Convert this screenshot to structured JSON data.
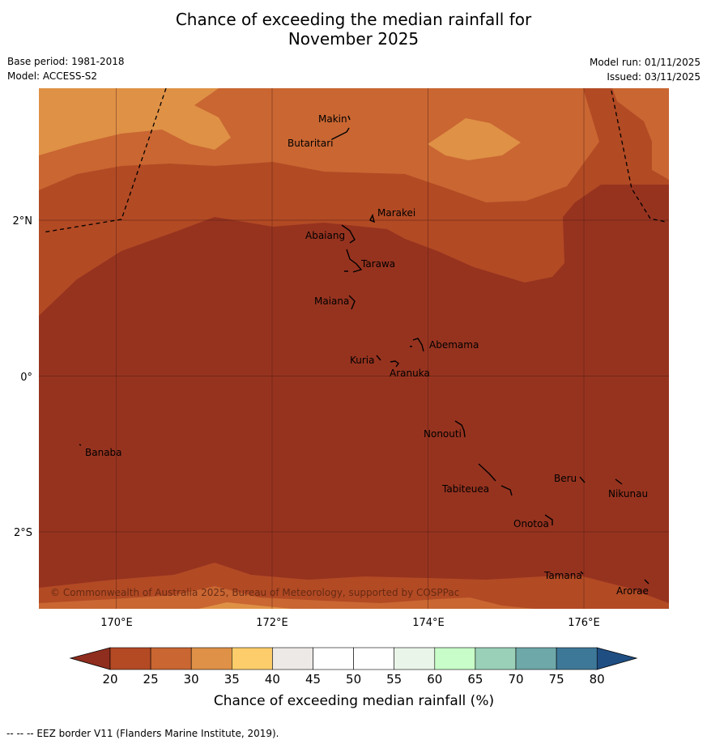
{
  "title": {
    "line1": "Chance of exceeding the median rainfall for",
    "line2": "November 2025"
  },
  "meta": {
    "base_period": "Base period: 1981-2018",
    "model": "Model: ACCESS-S2",
    "model_run": "Model run: 01/11/2025",
    "issued": "Issued: 03/11/2025"
  },
  "map": {
    "copyright": "© Commonwealth of Australia 2025, Bureau of Meteorology, supported by COSPPac",
    "lat_labels": [
      "2°N",
      "0°",
      "2°S"
    ],
    "lon_labels": [
      "170°E",
      "172°E",
      "174°E",
      "176°E"
    ],
    "places": [
      "Makin",
      "Butaritari",
      "Marakei",
      "Abaiang",
      "Tarawa",
      "Maiana",
      "Abemama",
      "Kuria",
      "Aranuka",
      "Nonouti",
      "Banaba",
      "Beru",
      "Nikunau",
      "Tabiteuea",
      "Onotoa",
      "Tamana",
      "Arorae"
    ]
  },
  "colorbar": {
    "ticks": [
      "20",
      "25",
      "30",
      "35",
      "40",
      "45",
      "50",
      "55",
      "60",
      "65",
      "70",
      "75",
      "80"
    ],
    "colors": [
      "#b34a24",
      "#c96632",
      "#df9147",
      "#fccd6a",
      "#ece9e6",
      "#ffffff",
      "#ffffff",
      "#e9f5e9",
      "#c8fcc8",
      "#9bd0b8",
      "#6ea8a8",
      "#3e7898"
    ],
    "low_color": "#8f2d1e",
    "high_color": "#1f4e82",
    "label": "Chance of exceeding median rainfall (%)"
  },
  "footnote": "--  --  -- EEZ border V11 (Flanders Marine Institute, 2019).",
  "palette": {
    "lt20": "#96331f",
    "p20_25": "#b24a24",
    "p25_30": "#c96632",
    "p30_35": "#df9146"
  }
}
